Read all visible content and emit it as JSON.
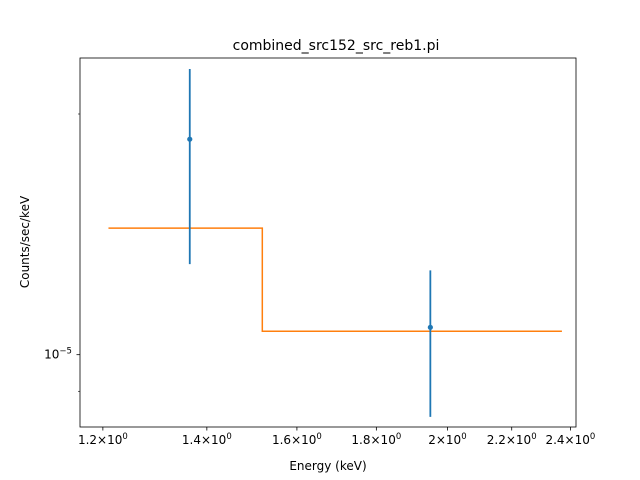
{
  "chart_data": {
    "type": "scatter",
    "title": "combined_src152_src_reb1.pi",
    "xlabel": "Energy (keV)",
    "ylabel": "Counts/sec/keV",
    "xscale": "log",
    "yscale": "log",
    "xlim": [
      1.16,
      2.42
    ],
    "ylim": [
      8.12e-06,
      2.35e-05
    ],
    "grid": false,
    "x_ticks": [
      {
        "value": 1.2,
        "mantissa": "1.2",
        "base": "10",
        "exp": "0"
      },
      {
        "value": 1.4,
        "mantissa": "1.4",
        "base": "10",
        "exp": "0"
      },
      {
        "value": 1.6,
        "mantissa": "1.6",
        "base": "10",
        "exp": "0"
      },
      {
        "value": 1.8,
        "mantissa": "1.8",
        "base": "10",
        "exp": "0"
      },
      {
        "value": 2.0,
        "mantissa": "2",
        "base": "10",
        "exp": "0"
      },
      {
        "value": 2.2,
        "mantissa": "2.2",
        "base": "10",
        "exp": "0"
      },
      {
        "value": 2.4,
        "mantissa": "2.4",
        "base": "10",
        "exp": "0"
      }
    ],
    "y_ticks": [
      {
        "value": 1e-05,
        "mantissa": "",
        "base": "10",
        "exp": "−5"
      }
    ],
    "series": [
      {
        "kind": "data",
        "color": "#1f77b4",
        "points": [
          {
            "x": 1.365,
            "y": 1.86e-05,
            "ylo": 1.298e-05,
            "yhi": 2.277e-05
          },
          {
            "x": 1.95,
            "y": 1.082e-05,
            "ylo": 8.36e-06,
            "yhi": 1.275e-05
          }
        ]
      },
      {
        "kind": "model",
        "color": "#ff7f0e",
        "steps": [
          {
            "x0": 1.21,
            "x1": 1.52,
            "y": 1.44e-05
          },
          {
            "x0": 1.52,
            "x1": 2.37,
            "y": 1.07e-05
          }
        ]
      }
    ]
  }
}
